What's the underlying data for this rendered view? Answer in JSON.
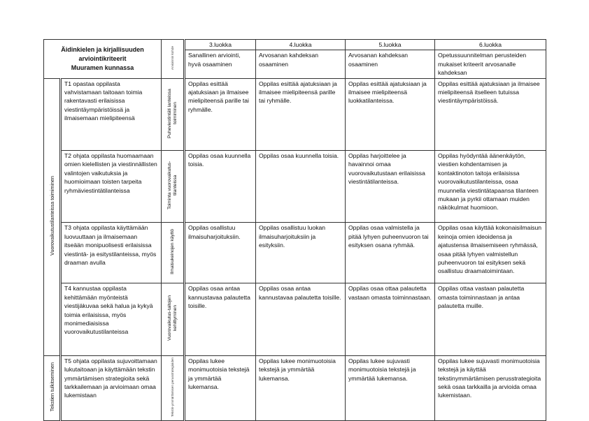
{
  "header": {
    "title_lines": [
      "Äidinkielen ja kirjallisuuden",
      "arviointikriteerit",
      "Muuramen kunnassa"
    ],
    "assessment_target_label": "Arvioinnin kohde",
    "grades": [
      "3.luokka",
      "4.luokka",
      "5.luokka",
      "6.luokka"
    ],
    "grade_descriptions": [
      "Sanallinen arviointi, hyvä osaaminen",
      "Arvosanan kahdeksan osaaminen",
      "Arvosanan kahdeksan osaaminen",
      "Opetussuunnitelman perusteiden mukaiset kriteerit arvosanalle kahdeksan"
    ]
  },
  "categories": [
    "Vuorovaikutustilanteissa toimiminen",
    "Tekstien tulkitseminen"
  ],
  "rows": [
    {
      "objective": "T1 opastaa oppilasta vahvistamaan taitoaan toimia rakentavasti erilaisissa viestintäympäristöissä ja ilmaisemaan mielipiteensä",
      "target": "Puheviestintäti lanteissa toimiminen",
      "criteria": [
        "Oppilas esittää ajatuksiaan ja ilmaisee mielipiteensä parille tai ryhmälle.",
        "Oppilas esittää ajatuksiaan ja ilmaisee mielipiteensä parille tai ryhmälle.",
        "Oppilas esittää ajatuksiaan ja ilmaisee mielipiteensä luokkatilanteissa.",
        "Oppilas esittää ajatuksiaan ja ilmaisee mielipiteensä itselleen tutuissa viestintäympäristöissä."
      ]
    },
    {
      "objective": "T2 ohjata oppilasta huomaamaan omien kielellisten ja viestinnällisten valintojen vaikutuksia ja huomioimaan toisten tarpeita ryhmäviestintätilanteissa",
      "target": "Toiminta vuorovaikutus-tilanteissa",
      "criteria": [
        "Oppilas osaa kuunnella toisia.",
        "Oppilas osaa kuunnella toisia.",
        "Oppilas harjoittelee ja havainnoi omaa vuorovaikutustaan erilaisissa viestintätilanteissa.",
        "Oppilas hyödyntää äänenkäytön, viestien kohdentamisen ja kontaktinoton taitoja erilaisissa vuorovaikutustilanteissa, osaa muunnella viestintätapaansa tilanteen mukaan ja pyrkii ottamaan muiden näkökulmat huomioon."
      ]
    },
    {
      "objective": "T3 ohjata oppilasta käyttämään luovuuttaan ja ilmaisemaan itseään monipuolisesti erilaisissa viestintä- ja esitystilanteissa, myös draaman avulla",
      "target": "Ilmaisukeinojen käyttö",
      "criteria": [
        "Oppilas osallistuu ilmaisuharjoituksiin.",
        "Oppilas osallistuu luokan ilmaisuharjoituksiin ja esityksiin.",
        "Oppilas osaa valmistella ja pitää lyhyen puheenvuoron tai esityksen osana ryhmää.",
        "Oppilas osaa käyttää kokonaisilmaisun keinoja omien ideoidensa ja ajatustensa ilmaisemiseen ryhmässä, osaa pitää lyhyen valmistellun puheenvuoron tai esityksen sekä osallistuu draamatoimintaan."
      ]
    },
    {
      "objective": "T4 kannustaa oppilasta kehittämään myönteistä viestijäkuvaa sekä halua ja kykyä toimia erilaisissa, myös monimediaisissa vuorovaikutustilanteissa",
      "target": "Vuorovaikutus-taitojen kehittyminen",
      "criteria": [
        "Oppilas osaa antaa kannustavaa palautetta toisille.",
        "Oppilas osaa antaa kannustavaa palautetta toisille.",
        "Oppilas osaa ottaa palautetta vastaan omasta toiminnastaan.",
        "Oppilas ottaa vastaan palautetta omasta toiminnastaan ja antaa palautetta muille."
      ]
    },
    {
      "objective": "T5 ohjata oppilasta sujuvoittamaan lukutaitoaan ja käyttämään tekstin ymmärtämisen strategioita sekä tarkkailemaan ja arvioimaan omaa lukemistaan",
      "target": "Tekstin-ymmärtämisen perusstrategioiden",
      "criteria": [
        "Oppilas lukee monimuotoisia tekstejä ja ymmärtää lukemansa.",
        "Oppilas lukee monimuotoisia tekstejä ja ymmärtää lukemansa.",
        "Oppilas lukee sujuvasti monimuotoisia tekstejä ja ymmärtää lukemansa.",
        "Oppilas lukee sujuvasti monimuotoisia tekstejä ja käyttää tekstinymmärtämisen perusstrategioita sekä osaa tarkkailla ja arvioida omaa lukemistaan."
      ]
    }
  ]
}
